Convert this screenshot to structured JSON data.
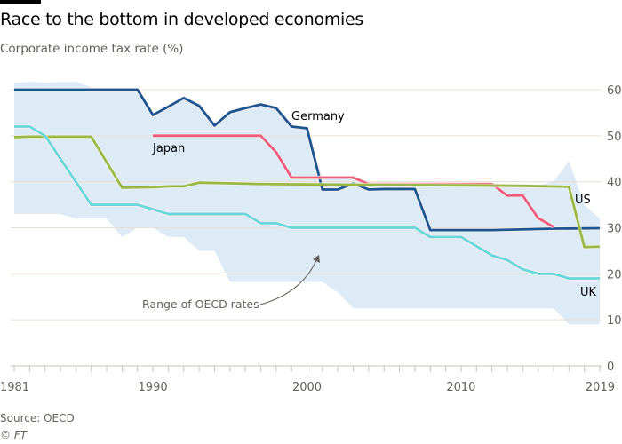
{
  "title": "Race to the bottom in developed economies",
  "subtitle": "Corporate income tax rate (%)",
  "source": "Source: OECD",
  "copyright": "© FT",
  "chart_data": {
    "type": "line",
    "title": "Race to the bottom in developed economies",
    "ylabel": "Corporate income tax rate (%)",
    "xlim": [
      1981,
      2019
    ],
    "ylim": [
      0,
      60
    ],
    "x_tick_labels": [
      "1981",
      "1990",
      "2000",
      "2010",
      "2019"
    ],
    "y_tick_labels": [
      "0",
      "10",
      "20",
      "30",
      "40",
      "50",
      "60"
    ],
    "y_axis_side": "right",
    "grid": true,
    "range": {
      "label": "Range of OECD rates",
      "color": "#dcebf6",
      "x": [
        1981,
        1982,
        1983,
        1984,
        1985,
        1986,
        1987,
        1988,
        1989,
        1990,
        1991,
        1992,
        1993,
        1994,
        1995,
        1996,
        1997,
        1998,
        1999,
        2000,
        2001,
        2002,
        2003,
        2004,
        2005,
        2006,
        2007,
        2008,
        2009,
        2010,
        2011,
        2012,
        2013,
        2014,
        2015,
        2016,
        2017,
        2018,
        2019
      ],
      "upper": [
        61.5,
        61.7,
        61.5,
        61.7,
        61.7,
        60.5,
        60,
        60,
        60,
        54.5,
        56.3,
        58.2,
        56.5,
        52.2,
        55.1,
        56,
        56.8,
        56,
        52,
        51.6,
        41,
        41,
        41,
        39.6,
        39.6,
        39.6,
        39.6,
        39.6,
        39.6,
        39.6,
        39.6,
        39.6,
        39.3,
        39.3,
        39.3,
        40,
        44.5,
        35,
        32
      ],
      "lower": [
        33,
        33,
        33,
        33,
        32,
        32,
        32,
        28,
        30,
        30,
        28,
        28,
        25,
        25,
        18.2,
        18.2,
        18.2,
        18.2,
        18.2,
        18.2,
        18.2,
        16,
        12.5,
        12.5,
        12.5,
        12.5,
        12.5,
        12.5,
        12.5,
        12.5,
        12.5,
        12.5,
        12.5,
        12.5,
        12.5,
        12.5,
        9,
        9,
        9
      ]
    },
    "series": [
      {
        "name": "Germany",
        "color": "#1d5592",
        "x": [
          1981,
          1989,
          1990,
          1991,
          1992,
          1993,
          1994,
          1995,
          1996,
          1997,
          1998,
          1999,
          2000,
          2001,
          2002,
          2003,
          2004,
          2005,
          2006,
          2007,
          2008,
          2012,
          2016,
          2019
        ],
        "values": [
          60,
          60,
          54.5,
          56.3,
          58.2,
          56.5,
          52.2,
          55.1,
          56,
          56.8,
          56,
          52,
          51.6,
          38.3,
          38.3,
          39.6,
          38.3,
          38.4,
          38.4,
          38.4,
          29.5,
          29.5,
          29.8,
          29.9
        ]
      },
      {
        "name": "Japan",
        "color": "#ec5d80",
        "x": [
          1990,
          1997,
          1998,
          1999,
          2003,
          2004,
          2012,
          2013,
          2014,
          2015,
          2016
        ],
        "values": [
          50,
          50,
          46.4,
          40.9,
          40.9,
          39.5,
          39.5,
          37,
          37,
          32.1,
          30.2
        ]
      },
      {
        "name": "US",
        "color": "#99b947",
        "x": [
          1981,
          1982,
          1986,
          1988,
          1990,
          1991,
          1992,
          1993,
          1997,
          2005,
          2011,
          2014,
          2017,
          2018,
          2019
        ],
        "values": [
          49.7,
          49.8,
          49.8,
          38.7,
          38.8,
          39,
          39,
          39.8,
          39.5,
          39.3,
          39.2,
          39.1,
          38.9,
          25.8,
          25.9
        ]
      },
      {
        "name": "UK",
        "color": "#6ad6dc",
        "x": [
          1981,
          1982,
          1983,
          1984,
          1985,
          1986,
          1989,
          1990,
          1991,
          1996,
          1997,
          1998,
          1999,
          2007,
          2008,
          2010,
          2011,
          2012,
          2013,
          2014,
          2015,
          2016,
          2017,
          2019
        ],
        "values": [
          52,
          52,
          50,
          45,
          40,
          35,
          35,
          34,
          33,
          33,
          31,
          31,
          30,
          30,
          28,
          28,
          26,
          24,
          23,
          21,
          20,
          20,
          19,
          19
        ]
      }
    ]
  }
}
